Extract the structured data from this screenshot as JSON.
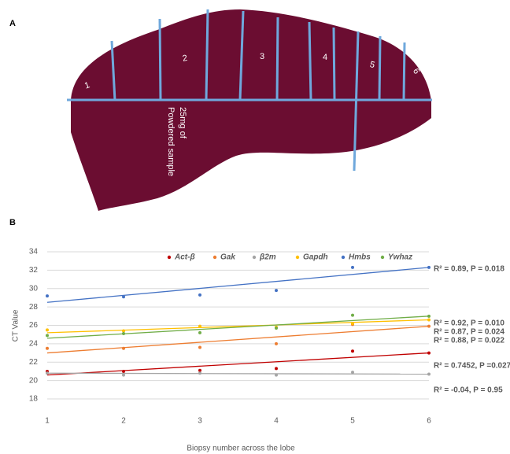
{
  "figure": {
    "panel_a": {
      "label": "A",
      "segments": [
        "1",
        "2",
        "3",
        "4",
        "5",
        "6"
      ],
      "annotation": [
        "25mg of",
        "Powdered sample"
      ]
    },
    "panel_b_label": "B"
  },
  "chart_data": {
    "type": "scatter",
    "x_label": "Biopsy number across the lobe",
    "y_label": "CT Value",
    "x": [
      1,
      2,
      3,
      4,
      5,
      6
    ],
    "xlim": [
      1,
      6
    ],
    "xticks": [
      1,
      2,
      3,
      4,
      5,
      6
    ],
    "ylim": [
      18,
      34
    ],
    "yticks": [
      18,
      20,
      22,
      24,
      26,
      28,
      30,
      32,
      34
    ],
    "grid": true,
    "legend": "top",
    "series": [
      {
        "name": "Act-β",
        "color": "#c00000",
        "values": [
          21.0,
          21.0,
          21.1,
          21.3,
          23.2,
          23.0
        ],
        "trend": [
          20.6,
          23.0
        ],
        "annotation": "R² = 0.7452, P =0.027"
      },
      {
        "name": "Gak",
        "color": "#ed7d31",
        "values": [
          23.5,
          23.5,
          23.6,
          24.0,
          26.1,
          25.9
        ],
        "trend": [
          23.0,
          25.9
        ],
        "annotation": "R² = 0.88, P = 0.022"
      },
      {
        "name": "β2m",
        "color": "#a5a5a5",
        "values": [
          20.8,
          20.6,
          20.8,
          20.6,
          20.9,
          20.7
        ],
        "trend": [
          20.8,
          20.7
        ],
        "annotation": "R² = -0.04, P = 0.95"
      },
      {
        "name": "Gapdh",
        "color": "#ffc000",
        "values": [
          25.5,
          25.4,
          25.9,
          25.8,
          26.2,
          26.6
        ],
        "trend": [
          25.2,
          26.6
        ],
        "annotation": "R² = 0.87, P = 0.024"
      },
      {
        "name": "Hmbs",
        "color": "#4472c4",
        "values": [
          29.2,
          29.1,
          29.3,
          29.8,
          32.3,
          32.3
        ],
        "trend": [
          28.5,
          32.3
        ],
        "annotation": "R² = 0.89, P = 0.018"
      },
      {
        "name": "Ywhaz",
        "color": "#70ad47",
        "values": [
          24.9,
          25.1,
          25.2,
          25.7,
          27.1,
          27.0
        ],
        "trend": [
          24.6,
          27.0
        ],
        "annotation": "R² = 0.92, P = 0.010"
      }
    ]
  }
}
